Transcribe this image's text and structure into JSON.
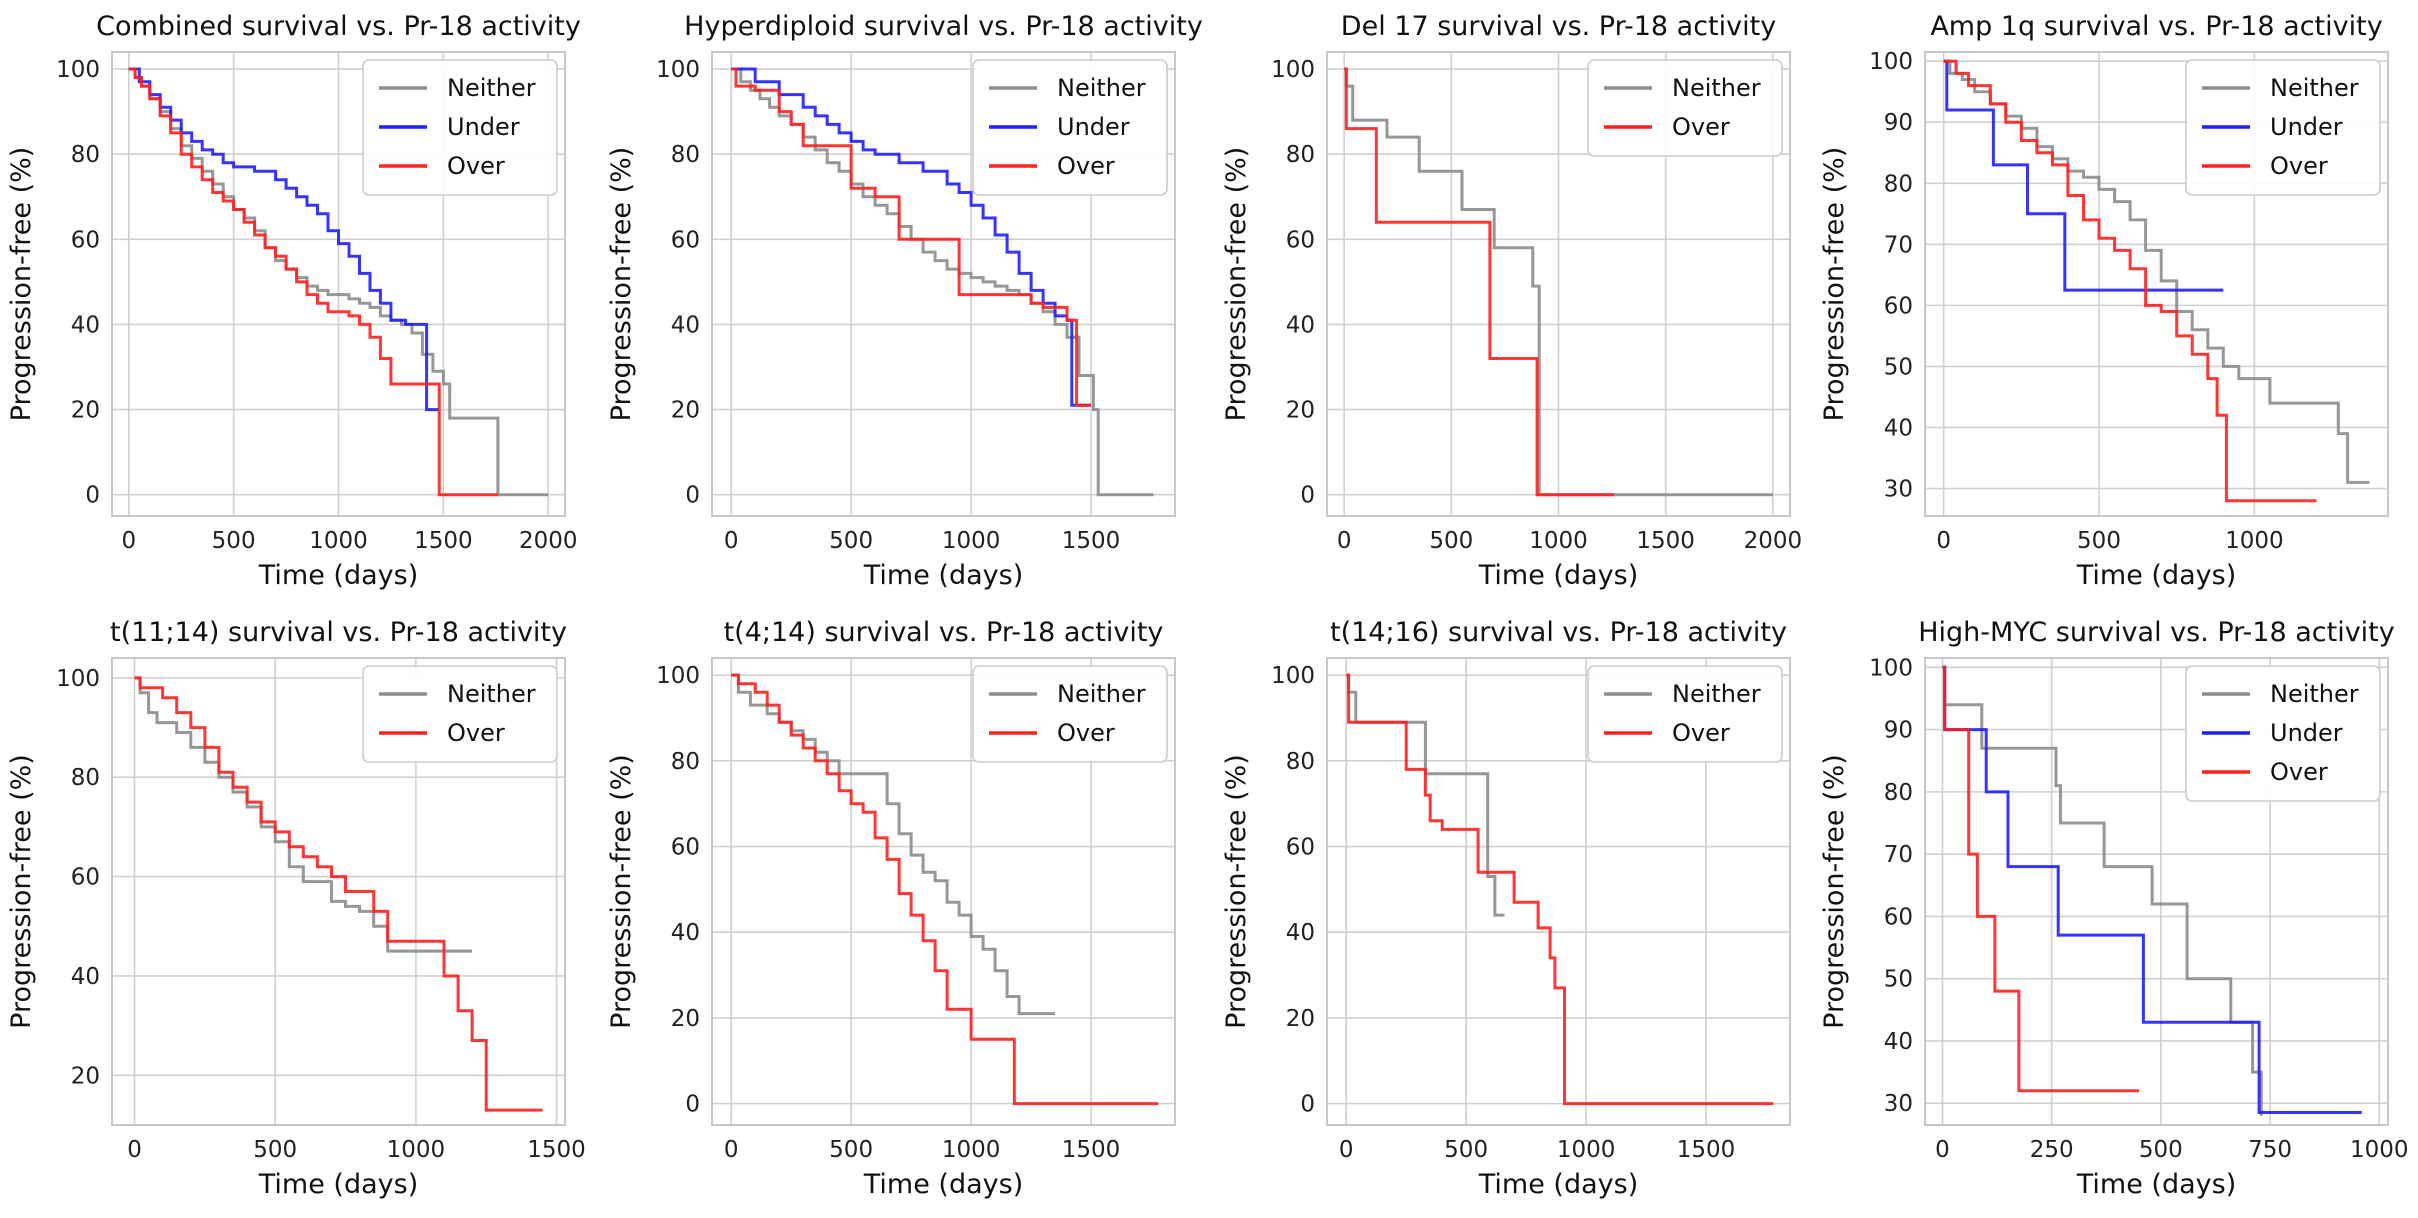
{
  "colors": {
    "Neither": "#8c8c8c",
    "Under": "#1f1fff",
    "Over": "#ff2020"
  },
  "chart_data": [
    {
      "type": "line",
      "title": "Combined survival vs. Pr-18 activity",
      "xlabel": "Time (days)",
      "ylabel": "Progression-free (%)",
      "xlim": [
        -80,
        2080
      ],
      "ylim": [
        -5,
        104
      ],
      "xticks": [
        0,
        500,
        1000,
        1500,
        2000
      ],
      "yticks": [
        0,
        20,
        40,
        60,
        80,
        100
      ],
      "legend": "top-right",
      "series": [
        {
          "name": "Neither",
          "x": [
            0,
            30,
            60,
            100,
            150,
            200,
            250,
            300,
            350,
            400,
            450,
            500,
            550,
            600,
            650,
            700,
            750,
            800,
            850,
            900,
            950,
            1000,
            1050,
            1100,
            1150,
            1200,
            1250,
            1300,
            1350,
            1400,
            1450,
            1500,
            1530,
            1550,
            1760,
            2000
          ],
          "y": [
            100,
            98,
            96,
            93,
            90,
            86,
            82,
            79,
            76,
            73,
            70,
            67,
            65,
            62,
            58,
            55,
            53,
            51,
            49,
            48,
            47,
            47,
            46,
            45,
            44,
            42,
            41,
            40,
            38,
            33,
            29,
            26,
            18,
            18,
            0,
            0
          ]
        },
        {
          "name": "Under",
          "x": [
            0,
            50,
            100,
            150,
            200,
            250,
            300,
            350,
            400,
            450,
            500,
            600,
            700,
            750,
            800,
            850,
            900,
            950,
            1000,
            1050,
            1100,
            1150,
            1200,
            1250,
            1320,
            1420,
            1480
          ],
          "y": [
            100,
            97,
            94,
            91,
            88,
            85,
            83,
            81,
            80,
            78,
            77,
            76,
            74,
            72,
            70,
            68,
            66,
            62,
            59,
            56,
            52,
            48,
            45,
            41,
            40,
            20,
            20
          ]
        },
        {
          "name": "Over",
          "x": [
            0,
            30,
            60,
            100,
            150,
            200,
            250,
            300,
            350,
            400,
            450,
            500,
            550,
            600,
            650,
            700,
            750,
            800,
            850,
            900,
            950,
            1000,
            1050,
            1100,
            1150,
            1200,
            1250,
            1300,
            1400,
            1450,
            1480,
            1760
          ],
          "y": [
            100,
            98,
            96,
            93,
            89,
            85,
            80,
            77,
            74,
            71,
            69,
            67,
            64,
            61,
            58,
            56,
            53,
            50,
            47,
            45,
            43,
            43,
            42,
            40,
            37,
            32,
            26,
            26,
            26,
            26,
            0,
            0
          ]
        }
      ]
    },
    {
      "type": "line",
      "title": "Hyperdiploid survival vs. Pr-18 activity",
      "xlabel": "Time (days)",
      "ylabel": "Progression-free (%)",
      "xlim": [
        -80,
        1850
      ],
      "ylim": [
        -5,
        104
      ],
      "xticks": [
        0,
        500,
        1000,
        1500
      ],
      "yticks": [
        0,
        20,
        40,
        60,
        80,
        100
      ],
      "legend": "top-right",
      "series": [
        {
          "name": "Neither",
          "x": [
            0,
            40,
            80,
            120,
            160,
            200,
            250,
            300,
            350,
            400,
            450,
            500,
            550,
            600,
            650,
            700,
            750,
            800,
            850,
            900,
            950,
            1000,
            1050,
            1100,
            1150,
            1200,
            1250,
            1300,
            1350,
            1400,
            1450,
            1510,
            1530,
            1760
          ],
          "y": [
            100,
            97,
            95,
            93,
            91,
            89,
            87,
            84,
            81,
            78,
            76,
            73,
            70,
            68,
            66,
            63,
            60,
            57,
            55,
            53,
            52,
            51,
            50,
            49,
            48,
            47,
            45,
            43,
            40,
            37,
            28,
            20,
            0,
            0
          ]
        },
        {
          "name": "Under",
          "x": [
            0,
            100,
            200,
            300,
            350,
            400,
            450,
            500,
            550,
            600,
            700,
            800,
            900,
            950,
            1000,
            1050,
            1100,
            1150,
            1200,
            1250,
            1300,
            1350,
            1400,
            1420,
            1460,
            1500
          ],
          "y": [
            100,
            97,
            94,
            91,
            89,
            87,
            85,
            83,
            81,
            80,
            78,
            76,
            73,
            71,
            68,
            65,
            61,
            57,
            52,
            48,
            45,
            42,
            41,
            21,
            21,
            21
          ]
        },
        {
          "name": "Over",
          "x": [
            0,
            20,
            100,
            200,
            250,
            300,
            400,
            500,
            600,
            700,
            750,
            850,
            900,
            950,
            1100,
            1150,
            1200,
            1250,
            1300,
            1400,
            1440,
            1500
          ],
          "y": [
            100,
            96,
            95,
            90,
            87,
            82,
            82,
            72,
            70,
            60,
            60,
            60,
            60,
            47,
            47,
            47,
            47,
            45,
            44,
            41,
            21,
            21
          ]
        }
      ]
    },
    {
      "type": "line",
      "title": "Del 17 survival vs. Pr-18 activity",
      "xlabel": "Time (days)",
      "ylabel": "Progression-free (%)",
      "xlim": [
        -80,
        2080
      ],
      "ylim": [
        -5,
        104
      ],
      "xticks": [
        0,
        500,
        1000,
        1500,
        2000
      ],
      "yticks": [
        0,
        20,
        40,
        60,
        80,
        100
      ],
      "legend": "top-right",
      "series": [
        {
          "name": "Neither",
          "x": [
            0,
            10,
            40,
            200,
            350,
            550,
            700,
            880,
            910,
            2000
          ],
          "y": [
            100,
            96,
            88,
            84,
            76,
            67,
            58,
            49,
            0,
            0
          ]
        },
        {
          "name": "Over",
          "x": [
            0,
            10,
            150,
            680,
            900,
            1260
          ],
          "y": [
            100,
            86,
            64,
            32,
            0,
            0
          ]
        }
      ]
    },
    {
      "type": "line",
      "title": "Amp 1q survival vs. Pr-18 activity",
      "xlabel": "Time (days)",
      "ylabel": "Progression-free (%)",
      "xlim": [
        -60,
        1430
      ],
      "ylim": [
        25.5,
        101.5
      ],
      "xticks": [
        0,
        500,
        1000
      ],
      "yticks": [
        30,
        40,
        50,
        60,
        70,
        80,
        90,
        100
      ],
      "legend": "top-right",
      "series": [
        {
          "name": "Neither",
          "x": [
            0,
            20,
            60,
            100,
            150,
            200,
            250,
            300,
            350,
            400,
            450,
            500,
            550,
            600,
            650,
            700,
            750,
            800,
            850,
            900,
            950,
            1000,
            1050,
            1100,
            1150,
            1200,
            1270,
            1300,
            1370
          ],
          "y": [
            100,
            98,
            97,
            95,
            93,
            91,
            89,
            86,
            84,
            82,
            81,
            79,
            77,
            74,
            69,
            64,
            59,
            56,
            53,
            50,
            48,
            48,
            44,
            44,
            44,
            44,
            39,
            31,
            31
          ]
        },
        {
          "name": "Under",
          "x": [
            0,
            10,
            160,
            270,
            390,
            900
          ],
          "y": [
            100,
            92,
            83,
            75,
            62.5,
            62.5
          ]
        },
        {
          "name": "Over",
          "x": [
            0,
            40,
            80,
            150,
            200,
            250,
            300,
            350,
            400,
            450,
            500,
            550,
            600,
            650,
            700,
            750,
            800,
            850,
            880,
            910,
            1200
          ],
          "y": [
            100,
            98,
            96,
            93,
            90,
            87,
            85,
            83,
            78,
            74,
            71,
            69,
            66,
            60,
            59,
            55,
            52,
            48,
            42,
            28,
            28
          ]
        }
      ]
    },
    {
      "type": "line",
      "title": "t(11;14) survival vs. Pr-18 activity",
      "xlabel": "Time (days)",
      "ylabel": "Progression-free (%)",
      "xlim": [
        -80,
        1530
      ],
      "ylim": [
        10,
        104
      ],
      "xticks": [
        0,
        500,
        1000,
        1500
      ],
      "yticks": [
        20,
        40,
        60,
        80,
        100
      ],
      "legend": "top-right",
      "series": [
        {
          "name": "Neither",
          "x": [
            0,
            20,
            50,
            80,
            150,
            200,
            250,
            300,
            350,
            400,
            450,
            500,
            550,
            600,
            700,
            750,
            800,
            850,
            900,
            1000,
            1100,
            1200
          ],
          "y": [
            100,
            97,
            93,
            91,
            89,
            86,
            83,
            80,
            77,
            74,
            70,
            67,
            62,
            59,
            55,
            54,
            53,
            50,
            45,
            45,
            45,
            45
          ]
        },
        {
          "name": "Over",
          "x": [
            0,
            20,
            100,
            150,
            200,
            250,
            300,
            350,
            400,
            450,
            500,
            550,
            600,
            650,
            700,
            750,
            850,
            900,
            1000,
            1050,
            1100,
            1150,
            1200,
            1250,
            1450
          ],
          "y": [
            100,
            98,
            96,
            93,
            90,
            86,
            81,
            78,
            75,
            71,
            69,
            66,
            64,
            62,
            60,
            57,
            53,
            47,
            47,
            47,
            40,
            33,
            27,
            13,
            13
          ]
        }
      ]
    },
    {
      "type": "line",
      "title": "t(4;14) survival vs. Pr-18 activity",
      "xlabel": "Time (days)",
      "ylabel": "Progression-free (%)",
      "xlim": [
        -80,
        1850
      ],
      "ylim": [
        -5,
        104
      ],
      "xticks": [
        0,
        500,
        1000,
        1500
      ],
      "yticks": [
        0,
        20,
        40,
        60,
        80,
        100
      ],
      "legend": "top-right",
      "series": [
        {
          "name": "Neither",
          "x": [
            0,
            30,
            80,
            150,
            200,
            250,
            300,
            350,
            400,
            450,
            500,
            600,
            650,
            700,
            750,
            800,
            850,
            900,
            950,
            1000,
            1050,
            1100,
            1150,
            1200,
            1350
          ],
          "y": [
            100,
            96,
            93,
            91,
            89,
            87,
            85,
            82,
            80,
            77,
            77,
            77,
            70,
            63,
            58,
            54,
            52,
            47,
            44,
            39,
            36,
            31,
            25,
            21,
            21
          ]
        },
        {
          "name": "Over",
          "x": [
            0,
            30,
            100,
            150,
            200,
            250,
            300,
            350,
            400,
            450,
            500,
            550,
            600,
            650,
            700,
            750,
            800,
            850,
            900,
            1000,
            1100,
            1180,
            1780
          ],
          "y": [
            100,
            98,
            96,
            93,
            89,
            86,
            83,
            80,
            77,
            73,
            70,
            68,
            62,
            57,
            49,
            44,
            38,
            31,
            22,
            15,
            15,
            0,
            0
          ]
        }
      ]
    },
    {
      "type": "line",
      "title": "t(14;16) survival vs. Pr-18 activity",
      "xlabel": "Time (days)",
      "ylabel": "Progression-free (%)",
      "xlim": [
        -80,
        1850
      ],
      "ylim": [
        -5,
        104
      ],
      "xticks": [
        0,
        500,
        1000,
        1500
      ],
      "yticks": [
        0,
        20,
        40,
        60,
        80,
        100
      ],
      "legend": "top-right",
      "series": [
        {
          "name": "Neither",
          "x": [
            0,
            10,
            40,
            150,
            330,
            590,
            620,
            660
          ],
          "y": [
            100,
            96,
            89,
            89,
            77,
            53,
            44,
            44
          ]
        },
        {
          "name": "Over",
          "x": [
            0,
            10,
            150,
            250,
            330,
            350,
            400,
            550,
            700,
            800,
            850,
            870,
            890,
            910,
            1780
          ],
          "y": [
            100,
            89,
            89,
            78,
            72,
            66,
            64,
            54,
            47,
            41,
            34,
            27,
            27,
            0,
            0
          ]
        }
      ]
    },
    {
      "type": "line",
      "title": "High-MYC survival vs. Pr-18 activity",
      "xlabel": "Time (days)",
      "ylabel": "Progression-free (%)",
      "xlim": [
        -40,
        1020
      ],
      "ylim": [
        26.5,
        101.5
      ],
      "xticks": [
        0,
        250,
        500,
        750,
        1000
      ],
      "yticks": [
        30,
        40,
        50,
        60,
        70,
        80,
        90,
        100
      ],
      "legend": "top-right",
      "series": [
        {
          "name": "Neither",
          "x": [
            0,
            5,
            90,
            260,
            270,
            370,
            480,
            560,
            660,
            710,
            730
          ],
          "y": [
            100,
            94,
            87,
            81,
            75,
            68,
            62,
            50,
            43,
            35,
            28
          ]
        },
        {
          "name": "Under",
          "x": [
            0,
            5,
            100,
            150,
            265,
            460,
            725,
            960
          ],
          "y": [
            100,
            90,
            80,
            68,
            57,
            43,
            28.5,
            28.5
          ]
        },
        {
          "name": "Over",
          "x": [
            0,
            5,
            60,
            80,
            120,
            175,
            450
          ],
          "y": [
            100,
            90,
            70,
            60,
            48,
            32,
            32
          ]
        }
      ]
    }
  ]
}
